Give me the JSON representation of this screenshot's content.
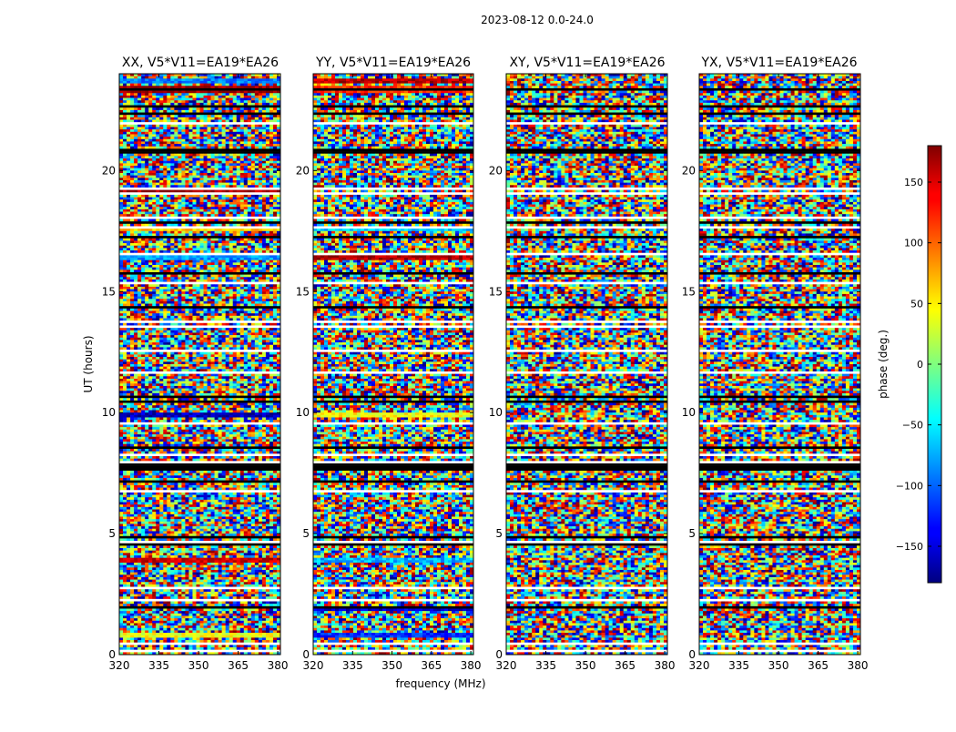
{
  "figure": {
    "suptitle": "2023-08-12 0.0-24.0"
  },
  "chart_data": [
    {
      "type": "heatmap",
      "title": "XX, V5*V11=EA19*EA26",
      "xlabel": "",
      "ylabel": "UT (hours)",
      "xlim": [
        320,
        381
      ],
      "ylim": [
        0,
        24
      ],
      "xticks": [
        320,
        335,
        350,
        365,
        380
      ],
      "yticks": [
        0,
        5,
        10,
        15,
        20
      ],
      "value_range": [
        -180,
        180
      ],
      "bands": [
        {
          "t": 23.7,
          "phase": -90
        },
        {
          "t": 23.35,
          "phase": 175
        },
        {
          "t": 16.4,
          "phase": -80
        },
        {
          "t": 9.9,
          "phase": -160
        },
        {
          "t": 3.9,
          "phase": 150
        },
        {
          "t": 0.8,
          "phase": 40
        },
        {
          "t": 19.2,
          "phase": 170
        },
        {
          "t": 17.6,
          "phase": 60
        }
      ]
    },
    {
      "type": "heatmap",
      "title": "YY, V5*V11=EA19*EA26",
      "xlabel": "frequency (MHz)",
      "ylabel": "",
      "xlim": [
        320,
        381
      ],
      "ylim": [
        0,
        24
      ],
      "xticks": [
        320,
        335,
        350,
        365,
        380
      ],
      "yticks": [
        0,
        5,
        10,
        15,
        20
      ],
      "value_range": [
        -180,
        180
      ],
      "bands": [
        {
          "t": 23.7,
          "phase": 160
        },
        {
          "t": 23.35,
          "phase": 120
        },
        {
          "t": 16.4,
          "phase": 165
        },
        {
          "t": 9.9,
          "phase": 45
        },
        {
          "t": 3.9,
          "phase": -70
        },
        {
          "t": 0.8,
          "phase": -120
        },
        {
          "t": 1.9,
          "phase": -150
        },
        {
          "t": 17.6,
          "phase": -60
        }
      ]
    },
    {
      "type": "heatmap",
      "title": "XY, V5*V11=EA19*EA26",
      "xlabel": "",
      "ylabel": "",
      "xlim": [
        320,
        381
      ],
      "ylim": [
        0,
        24
      ],
      "xticks": [
        320,
        335,
        350,
        365,
        380
      ],
      "yticks": [
        0,
        5,
        10,
        15,
        20
      ],
      "value_range": [
        -180,
        180
      ],
      "bands": []
    },
    {
      "type": "heatmap",
      "title": "YX, V5*V11=EA19*EA26",
      "xlabel": "",
      "ylabel": "",
      "xlim": [
        320,
        381
      ],
      "ylim": [
        0,
        24
      ],
      "xticks": [
        320,
        335,
        350,
        365,
        380
      ],
      "yticks": [
        0,
        5,
        10,
        15,
        20
      ],
      "value_range": [
        -180,
        180
      ],
      "bands": []
    }
  ],
  "colorbar": {
    "label": "phase (deg.)",
    "range": [
      -180,
      180
    ],
    "ticks": [
      -150,
      -100,
      -50,
      0,
      50,
      100,
      150
    ],
    "tick_labels": [
      "−150",
      "−100",
      "−50",
      "0",
      "50",
      "100",
      "150"
    ],
    "colormap": "jet"
  }
}
